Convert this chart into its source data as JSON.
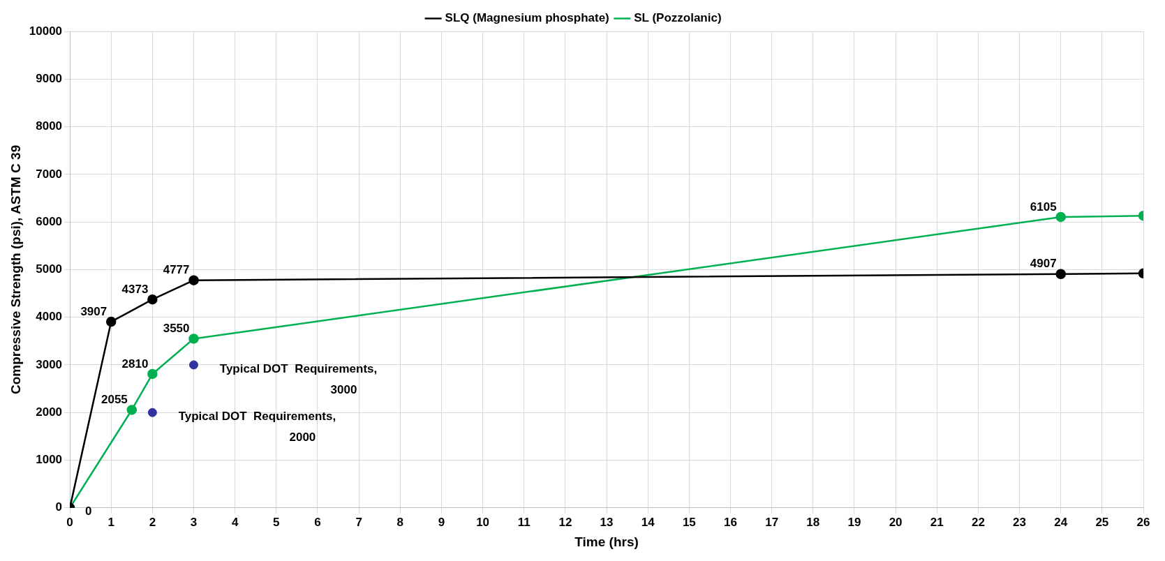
{
  "chart_data": {
    "type": "line",
    "xlabel": "Time (hrs)",
    "ylabel": "Compressive Strength (psi), ASTM C 39",
    "xlim": [
      0,
      26
    ],
    "xticks": [
      0,
      1,
      2,
      3,
      4,
      5,
      6,
      7,
      8,
      9,
      10,
      11,
      12,
      13,
      14,
      15,
      16,
      17,
      18,
      19,
      20,
      21,
      22,
      23,
      24,
      25,
      26
    ],
    "ylim": [
      0,
      10000
    ],
    "yticks": [
      0,
      1000,
      2000,
      3000,
      4000,
      5000,
      6000,
      7000,
      8000,
      9000,
      10000
    ],
    "grid": true,
    "legend": "top",
    "marker": "circle",
    "line_style": "solid",
    "series": [
      {
        "name": "SLQ (Magnesium phosphate)",
        "color": "#000000",
        "x": [
          0,
          1,
          2,
          3,
          24,
          26
        ],
        "values": [
          0,
          3907,
          4373,
          4777,
          4907,
          4920
        ],
        "value_labels": [
          "0",
          "3907",
          "4373",
          "4777",
          "4907",
          null
        ]
      },
      {
        "name": "SL (Pozzolanic)",
        "color": "#00b050",
        "x": [
          0,
          1.5,
          2,
          3,
          24,
          26
        ],
        "values": [
          0,
          2055,
          2810,
          3550,
          6105,
          6130
        ],
        "value_labels": [
          null,
          "2055",
          "2810",
          "3550",
          "6105",
          null
        ]
      },
      {
        "type": "scatter",
        "color": "#3333a0",
        "x": [
          2,
          3
        ],
        "values": [
          2000,
          3000
        ],
        "value_labels": [
          "Typical DOT  Requirements,\n2000",
          "Typical DOT  Requirements,\n3000"
        ]
      }
    ]
  }
}
